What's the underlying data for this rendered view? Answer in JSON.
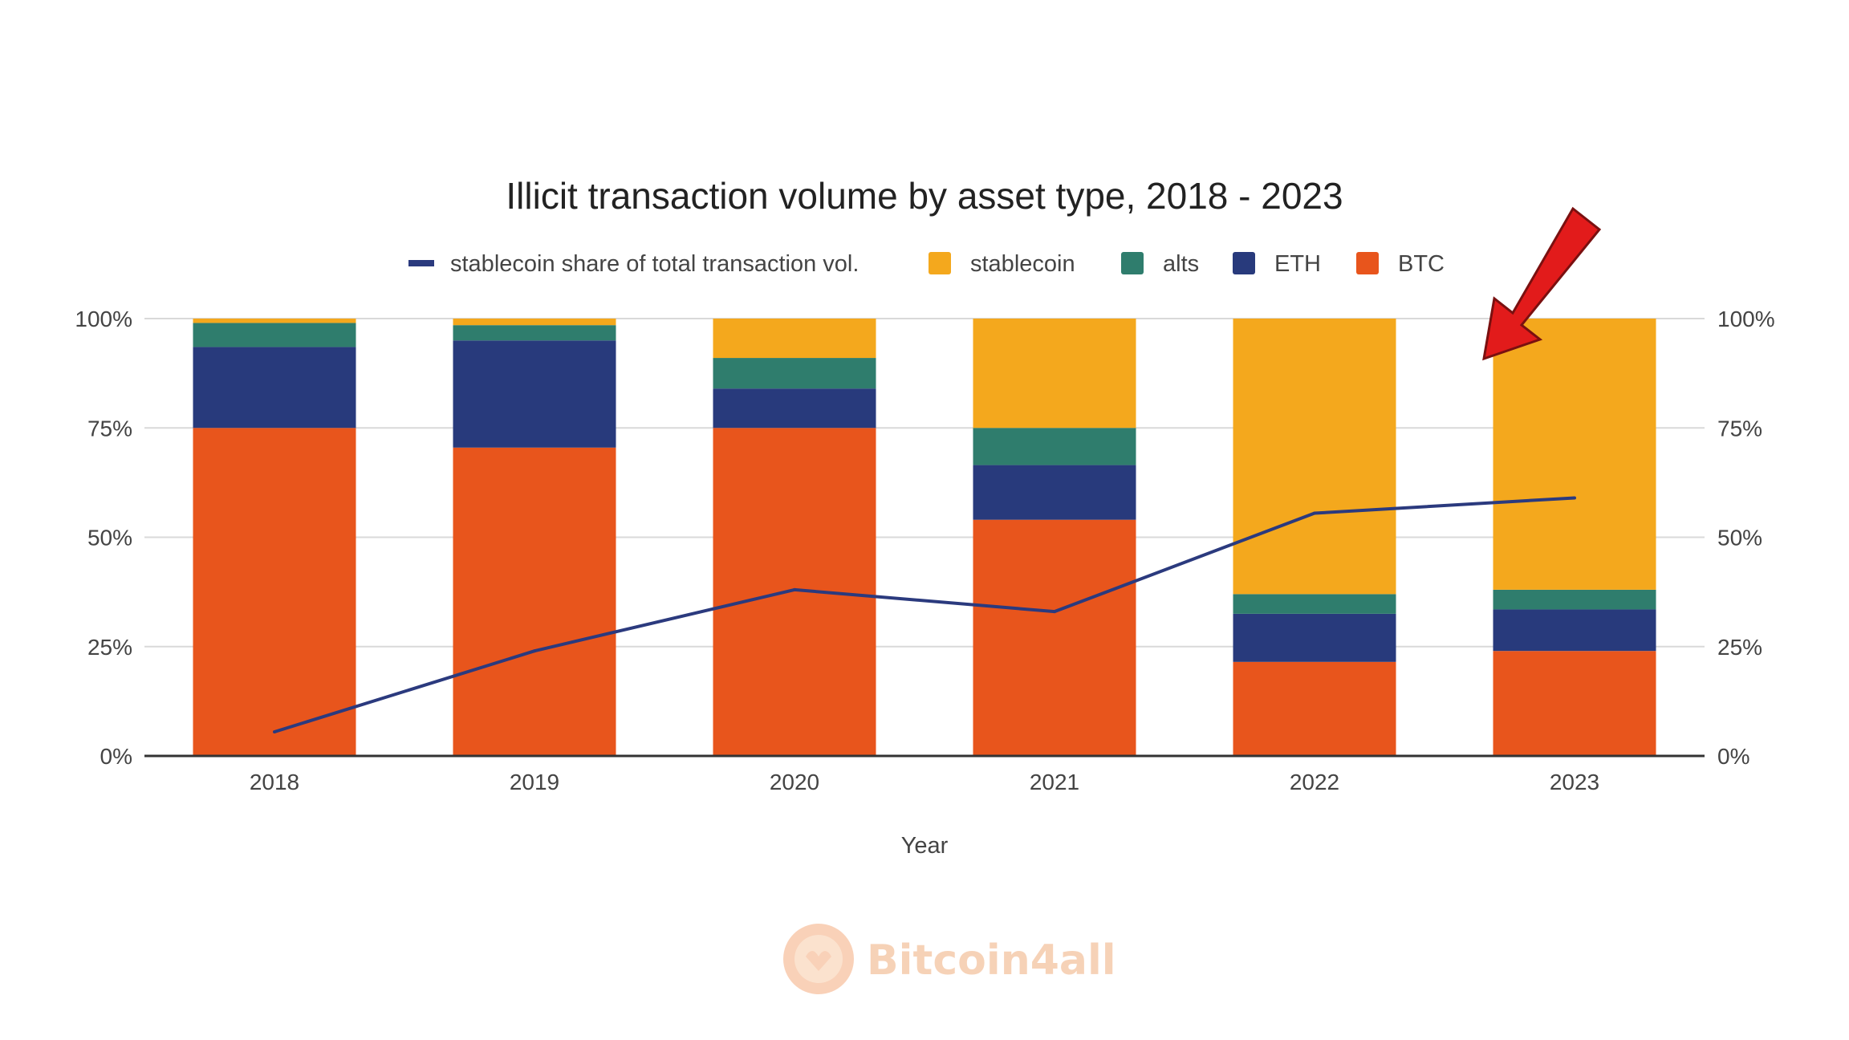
{
  "watermark": {
    "text": "Bitcoin4all",
    "icon": "hands-coin-logo-icon"
  },
  "annotation": {
    "icon": "red-arrow-icon",
    "color": "#e21b1b"
  },
  "chart_data": {
    "type": "bar",
    "stacked": true,
    "title": "Illicit transaction volume by asset type, 2018 - 2023",
    "xlabel": "Year",
    "ylabel": "",
    "categories": [
      "2018",
      "2019",
      "2020",
      "2021",
      "2022",
      "2023"
    ],
    "ylim": [
      0,
      100
    ],
    "y_ticks": [
      "0%",
      "25%",
      "50%",
      "75%",
      "100%"
    ],
    "y_right_ticks": [
      "0%",
      "25%",
      "50%",
      "75%",
      "100%"
    ],
    "grid": true,
    "legend_position": "top",
    "legend": [
      {
        "label": "stablecoin share of total transaction vol.",
        "kind": "line",
        "color": "#2b3a7e"
      },
      {
        "label": "stablecoin",
        "kind": "bar",
        "color": "#f4a81d"
      },
      {
        "label": "alts",
        "kind": "bar",
        "color": "#2f7d6d"
      },
      {
        "label": "ETH",
        "kind": "bar",
        "color": "#283a7c"
      },
      {
        "label": "BTC",
        "kind": "bar",
        "color": "#e8551c"
      }
    ],
    "series": [
      {
        "name": "BTC",
        "color": "#e8551c",
        "values": [
          75,
          70.5,
          75,
          54,
          21.5,
          24
        ]
      },
      {
        "name": "ETH",
        "color": "#283a7c",
        "values": [
          18.5,
          24.5,
          9,
          12.5,
          11,
          9.5
        ]
      },
      {
        "name": "alts",
        "color": "#2f7d6d",
        "values": [
          5.5,
          3.5,
          7,
          8.5,
          4.5,
          4.5
        ]
      },
      {
        "name": "stablecoin",
        "color": "#f4a81d",
        "values": [
          1,
          1.5,
          9,
          25,
          63,
          62
        ]
      }
    ],
    "line_series": {
      "name": "stablecoin share of total transaction vol.",
      "color": "#2b3a7e",
      "values": [
        5.5,
        24,
        38,
        33,
        55.5,
        59
      ]
    }
  }
}
